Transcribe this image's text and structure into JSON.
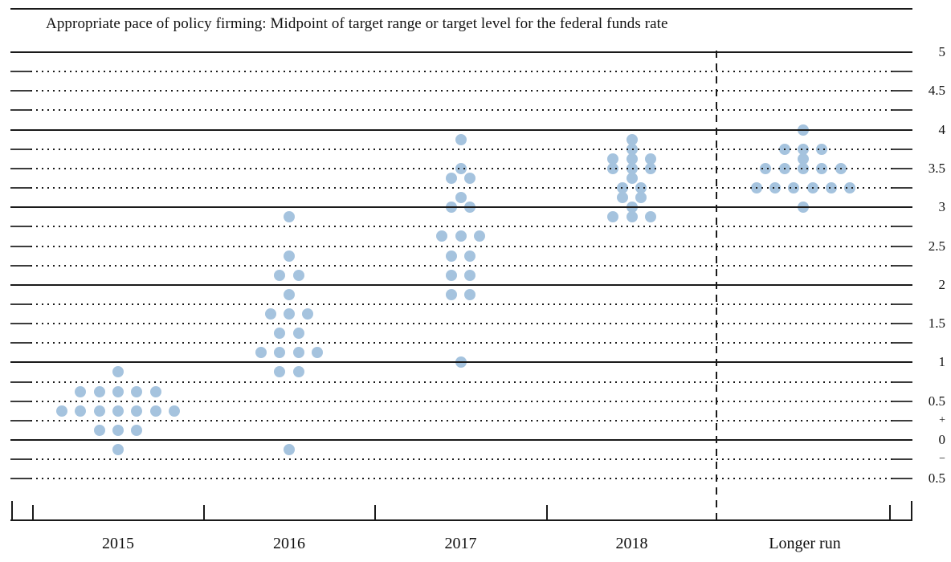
{
  "title": "Appropriate pace of policy firming: Midpoint of target range or target level for the federal funds rate",
  "chart_data": {
    "type": "scatter",
    "subtype": "fomc-dot-plot",
    "title": "Appropriate pace of policy firming: Midpoint of target range or target level for the federal funds rate",
    "unit": "percent",
    "dot_color": "#a5c3de",
    "line_color": "#1a1a1a",
    "grid": "solid lines at integers 0-5, dotted lines every 0.25 with solid end caps",
    "legend_position": "none",
    "categories": [
      "2015",
      "2016",
      "2017",
      "2018",
      "Longer run"
    ],
    "divider": {
      "style": "dashed-vertical-line",
      "between": [
        "2018",
        "Longer run"
      ]
    },
    "y_axis": {
      "min": -0.5,
      "max": 5,
      "step": 0.25,
      "solid_line_values": [
        0,
        1,
        2,
        3,
        4,
        5
      ],
      "labels": [
        {
          "text": "5",
          "value": 5
        },
        {
          "text": "4.5",
          "value": 4.5
        },
        {
          "text": "4",
          "value": 4
        },
        {
          "text": "3.5",
          "value": 3.5
        },
        {
          "text": "3",
          "value": 3
        },
        {
          "text": "2.5",
          "value": 2.5
        },
        {
          "text": "2",
          "value": 2
        },
        {
          "text": "1.5",
          "value": 1.5
        },
        {
          "text": "1",
          "value": 1
        },
        {
          "text": "0.5",
          "value": 0.5
        },
        {
          "text": "+",
          "value": 0.25,
          "small": true
        },
        {
          "text": "0",
          "value": 0
        },
        {
          "text": "−",
          "value": -0.25,
          "small": true
        },
        {
          "text": "0.5",
          "value": -0.5
        }
      ]
    },
    "series": [
      {
        "category": "2015",
        "participants": 17,
        "dots": [
          {
            "value": 0.875,
            "count": 1
          },
          {
            "value": 0.625,
            "count": 5
          },
          {
            "value": 0.375,
            "count": 7
          },
          {
            "value": 0.125,
            "count": 3
          },
          {
            "value": -0.125,
            "count": 1
          }
        ]
      },
      {
        "category": "2016",
        "participants": 17,
        "dots": [
          {
            "value": 2.875,
            "count": 1
          },
          {
            "value": 2.375,
            "count": 1
          },
          {
            "value": 2.125,
            "count": 2
          },
          {
            "value": 1.875,
            "count": 1
          },
          {
            "value": 1.625,
            "count": 3
          },
          {
            "value": 1.375,
            "count": 2
          },
          {
            "value": 1.125,
            "count": 4
          },
          {
            "value": 0.875,
            "count": 2
          },
          {
            "value": -0.125,
            "count": 1
          }
        ]
      },
      {
        "category": "2017",
        "participants": 17,
        "dots": [
          {
            "value": 3.875,
            "count": 1
          },
          {
            "value": 3.5,
            "count": 1
          },
          {
            "value": 3.375,
            "count": 2
          },
          {
            "value": 3.125,
            "count": 1
          },
          {
            "value": 3.0,
            "count": 2
          },
          {
            "value": 2.625,
            "count": 3
          },
          {
            "value": 2.375,
            "count": 2
          },
          {
            "value": 2.125,
            "count": 2
          },
          {
            "value": 1.875,
            "count": 2
          },
          {
            "value": 1.0,
            "count": 1
          }
        ]
      },
      {
        "category": "2018",
        "participants": 17,
        "dots": [
          {
            "value": 3.875,
            "count": 1
          },
          {
            "value": 3.75,
            "count": 1
          },
          {
            "value": 3.625,
            "count": 3
          },
          {
            "value": 3.5,
            "count": 3
          },
          {
            "value": 3.375,
            "count": 1
          },
          {
            "value": 3.25,
            "count": 2
          },
          {
            "value": 3.125,
            "count": 2
          },
          {
            "value": 3.0,
            "count": 1
          },
          {
            "value": 2.875,
            "count": 3
          }
        ]
      },
      {
        "category": "Longer run",
        "participants": 17,
        "dots": [
          {
            "value": 4.0,
            "count": 1
          },
          {
            "value": 3.75,
            "count": 3
          },
          {
            "value": 3.625,
            "count": 1
          },
          {
            "value": 3.5,
            "count": 5
          },
          {
            "value": 3.25,
            "count": 6
          },
          {
            "value": 3.0,
            "count": 1
          }
        ]
      }
    ]
  }
}
